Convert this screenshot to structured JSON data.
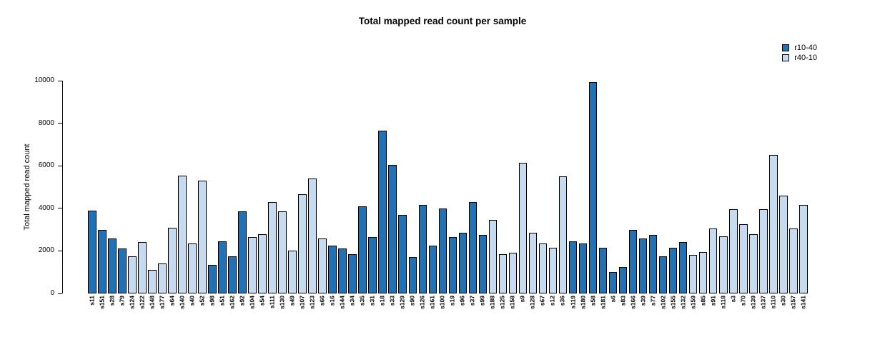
{
  "chart_data": {
    "type": "bar",
    "title": "Total mapped read count per sample",
    "ylabel": "Total mapped read count",
    "xlabel": "",
    "ylim": [
      0,
      10000
    ],
    "yticks": [
      0,
      2000,
      4000,
      6000,
      8000,
      10000
    ],
    "grid": false,
    "legend_position": "top-right",
    "group_colors": {
      "r10-40": "#2171b5",
      "r40-10": "#c6dbef"
    },
    "legend": [
      {
        "label": "r10-40",
        "color": "#2171b5"
      },
      {
        "label": "r40-10",
        "color": "#c6dbef"
      }
    ],
    "bars": [
      {
        "label": "s11",
        "group": "r10-40",
        "value": 3900
      },
      {
        "label": "s151",
        "group": "r10-40",
        "value": 3000
      },
      {
        "label": "s28",
        "group": "r10-40",
        "value": 2600
      },
      {
        "label": "s79",
        "group": "r10-40",
        "value": 2100
      },
      {
        "label": "s124",
        "group": "r40-10",
        "value": 1750
      },
      {
        "label": "s122",
        "group": "r40-10",
        "value": 2400
      },
      {
        "label": "s148",
        "group": "r40-10",
        "value": 1100
      },
      {
        "label": "s177",
        "group": "r40-10",
        "value": 1400
      },
      {
        "label": "s64",
        "group": "r40-10",
        "value": 3100
      },
      {
        "label": "s140",
        "group": "r40-10",
        "value": 5550
      },
      {
        "label": "s40",
        "group": "r40-10",
        "value": 2350
      },
      {
        "label": "s52",
        "group": "r40-10",
        "value": 5300
      },
      {
        "label": "s98",
        "group": "r10-40",
        "value": 1350
      },
      {
        "label": "s51",
        "group": "r10-40",
        "value": 2450
      },
      {
        "label": "s162",
        "group": "r10-40",
        "value": 1750
      },
      {
        "label": "s92",
        "group": "r10-40",
        "value": 3850
      },
      {
        "label": "s104",
        "group": "r40-10",
        "value": 2650
      },
      {
        "label": "s54",
        "group": "r40-10",
        "value": 2800
      },
      {
        "label": "s111",
        "group": "r40-10",
        "value": 4300
      },
      {
        "label": "s130",
        "group": "r40-10",
        "value": 3850
      },
      {
        "label": "s49",
        "group": "r40-10",
        "value": 2000
      },
      {
        "label": "s107",
        "group": "r40-10",
        "value": 4650
      },
      {
        "label": "s123",
        "group": "r40-10",
        "value": 5400
      },
      {
        "label": "s66",
        "group": "r40-10",
        "value": 2600
      },
      {
        "label": "s16",
        "group": "r10-40",
        "value": 2250
      },
      {
        "label": "s144",
        "group": "r10-40",
        "value": 2100
      },
      {
        "label": "s34",
        "group": "r10-40",
        "value": 1850
      },
      {
        "label": "s35",
        "group": "r10-40",
        "value": 4100
      },
      {
        "label": "s31",
        "group": "r10-40",
        "value": 2650
      },
      {
        "label": "s18",
        "group": "r10-40",
        "value": 7650
      },
      {
        "label": "s33",
        "group": "r10-40",
        "value": 6050
      },
      {
        "label": "s129",
        "group": "r10-40",
        "value": 3700
      },
      {
        "label": "s90",
        "group": "r10-40",
        "value": 1700
      },
      {
        "label": "s126",
        "group": "r10-40",
        "value": 4150
      },
      {
        "label": "s161",
        "group": "r10-40",
        "value": 2250
      },
      {
        "label": "s100",
        "group": "r10-40",
        "value": 4000
      },
      {
        "label": "s19",
        "group": "r10-40",
        "value": 2650
      },
      {
        "label": "s96",
        "group": "r10-40",
        "value": 2850
      },
      {
        "label": "s37",
        "group": "r10-40",
        "value": 4300
      },
      {
        "label": "s99",
        "group": "r10-40",
        "value": 2750
      },
      {
        "label": "s188",
        "group": "r40-10",
        "value": 3450
      },
      {
        "label": "s125",
        "group": "r40-10",
        "value": 1850
      },
      {
        "label": "s158",
        "group": "r40-10",
        "value": 1900
      },
      {
        "label": "s9",
        "group": "r40-10",
        "value": 6150
      },
      {
        "label": "s128",
        "group": "r40-10",
        "value": 2850
      },
      {
        "label": "s67",
        "group": "r40-10",
        "value": 2350
      },
      {
        "label": "s12",
        "group": "r40-10",
        "value": 2150
      },
      {
        "label": "s36",
        "group": "r40-10",
        "value": 5500
      },
      {
        "label": "s119",
        "group": "r10-40",
        "value": 2450
      },
      {
        "label": "s180",
        "group": "r10-40",
        "value": 2350
      },
      {
        "label": "s58",
        "group": "r10-40",
        "value": 9950
      },
      {
        "label": "s181",
        "group": "r10-40",
        "value": 2150
      },
      {
        "label": "s6",
        "group": "r10-40",
        "value": 1000
      },
      {
        "label": "s83",
        "group": "r10-40",
        "value": 1250
      },
      {
        "label": "s166",
        "group": "r10-40",
        "value": 3000
      },
      {
        "label": "s39",
        "group": "r10-40",
        "value": 2600
      },
      {
        "label": "s77",
        "group": "r10-40",
        "value": 2750
      },
      {
        "label": "s102",
        "group": "r10-40",
        "value": 1750
      },
      {
        "label": "s155",
        "group": "r10-40",
        "value": 2150
      },
      {
        "label": "s132",
        "group": "r10-40",
        "value": 2400
      },
      {
        "label": "s159",
        "group": "r40-10",
        "value": 1800
      },
      {
        "label": "s85",
        "group": "r40-10",
        "value": 1950
      },
      {
        "label": "s91",
        "group": "r40-10",
        "value": 3050
      },
      {
        "label": "s118",
        "group": "r40-10",
        "value": 2700
      },
      {
        "label": "s3",
        "group": "r40-10",
        "value": 3950
      },
      {
        "label": "s70",
        "group": "r40-10",
        "value": 3250
      },
      {
        "label": "s139",
        "group": "r40-10",
        "value": 2800
      },
      {
        "label": "s137",
        "group": "r40-10",
        "value": 3950
      },
      {
        "label": "s110",
        "group": "r40-10",
        "value": 6500
      },
      {
        "label": "s30",
        "group": "r40-10",
        "value": 4600
      },
      {
        "label": "s157",
        "group": "r40-10",
        "value": 3050
      },
      {
        "label": "s141",
        "group": "r40-10",
        "value": 4150
      }
    ]
  }
}
